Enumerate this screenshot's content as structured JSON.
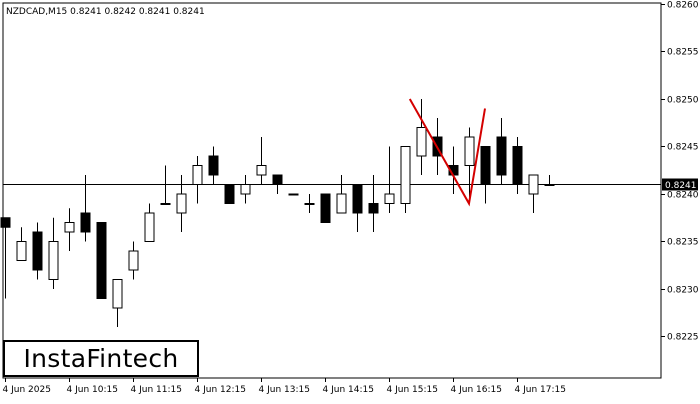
{
  "chart_data": {
    "type": "candlestick",
    "header": "NZDCAD,M15  0.8241 0.8242 0.8241 0.8241",
    "symbol": "NZDCAD",
    "timeframe": "M15",
    "last_ohlc": {
      "open": 0.8241,
      "high": 0.8242,
      "low": 0.8241,
      "close": 0.8241
    },
    "current_price": 0.8241,
    "current_price_label": "0.8241",
    "ylim": [
      0.822,
      0.826
    ],
    "y_ticks": [
      {
        "value": 0.826,
        "label": "0.8260"
      },
      {
        "value": 0.8255,
        "label": "0.8255"
      },
      {
        "value": 0.825,
        "label": "0.8250"
      },
      {
        "value": 0.8245,
        "label": "0.8245"
      },
      {
        "value": 0.824,
        "label": "0.8240"
      },
      {
        "value": 0.8235,
        "label": "0.8235"
      },
      {
        "value": 0.823,
        "label": "0.8230"
      },
      {
        "value": 0.8225,
        "label": "0.8225"
      }
    ],
    "x_ticks": [
      {
        "index": 0,
        "label": "4 Jun 2025"
      },
      {
        "index": 4,
        "label": "4 Jun 10:15"
      },
      {
        "index": 8,
        "label": "4 Jun 11:15"
      },
      {
        "index": 12,
        "label": "4 Jun 12:15"
      },
      {
        "index": 16,
        "label": "4 Jun 13:15"
      },
      {
        "index": 20,
        "label": "4 Jun 14:15"
      },
      {
        "index": 24,
        "label": "4 Jun 15:15"
      },
      {
        "index": 28,
        "label": "4 Jun 16:15"
      },
      {
        "index": 32,
        "label": "4 Jun 17:15"
      }
    ],
    "candles": [
      {
        "o": 0.82375,
        "h": 0.82375,
        "l": 0.8229,
        "c": 0.82365
      },
      {
        "o": 0.8233,
        "h": 0.82365,
        "l": 0.8233,
        "c": 0.8235
      },
      {
        "o": 0.8236,
        "h": 0.8237,
        "l": 0.8231,
        "c": 0.8232
      },
      {
        "o": 0.8231,
        "h": 0.82375,
        "l": 0.823,
        "c": 0.8235
      },
      {
        "o": 0.8236,
        "h": 0.82385,
        "l": 0.8234,
        "c": 0.8237
      },
      {
        "o": 0.8238,
        "h": 0.8242,
        "l": 0.8235,
        "c": 0.8236
      },
      {
        "o": 0.8237,
        "h": 0.8237,
        "l": 0.8229,
        "c": 0.8229
      },
      {
        "o": 0.8228,
        "h": 0.8231,
        "l": 0.8226,
        "c": 0.8231
      },
      {
        "o": 0.8232,
        "h": 0.8235,
        "l": 0.8231,
        "c": 0.8234
      },
      {
        "o": 0.8235,
        "h": 0.8239,
        "l": 0.8235,
        "c": 0.8238
      },
      {
        "o": 0.8239,
        "h": 0.8243,
        "l": 0.8239,
        "c": 0.8239
      },
      {
        "o": 0.8238,
        "h": 0.8242,
        "l": 0.8236,
        "c": 0.824
      },
      {
        "o": 0.8241,
        "h": 0.8244,
        "l": 0.8239,
        "c": 0.8243
      },
      {
        "o": 0.8244,
        "h": 0.8245,
        "l": 0.8241,
        "c": 0.8242
      },
      {
        "o": 0.8241,
        "h": 0.8241,
        "l": 0.8239,
        "c": 0.8239
      },
      {
        "o": 0.824,
        "h": 0.8242,
        "l": 0.8239,
        "c": 0.8241
      },
      {
        "o": 0.8242,
        "h": 0.8246,
        "l": 0.8241,
        "c": 0.8243
      },
      {
        "o": 0.8242,
        "h": 0.8242,
        "l": 0.824,
        "c": 0.8241
      },
      {
        "o": 0.824,
        "h": 0.824,
        "l": 0.824,
        "c": 0.824
      },
      {
        "o": 0.8239,
        "h": 0.824,
        "l": 0.8238,
        "c": 0.8239
      },
      {
        "o": 0.824,
        "h": 0.824,
        "l": 0.8237,
        "c": 0.8237
      },
      {
        "o": 0.8238,
        "h": 0.8242,
        "l": 0.8238,
        "c": 0.824
      },
      {
        "o": 0.8241,
        "h": 0.8241,
        "l": 0.8236,
        "c": 0.8238
      },
      {
        "o": 0.8239,
        "h": 0.8242,
        "l": 0.8236,
        "c": 0.8238
      },
      {
        "o": 0.8239,
        "h": 0.8245,
        "l": 0.8238,
        "c": 0.824
      },
      {
        "o": 0.8239,
        "h": 0.8245,
        "l": 0.8238,
        "c": 0.8245
      },
      {
        "o": 0.8244,
        "h": 0.825,
        "l": 0.8242,
        "c": 0.8247
      },
      {
        "o": 0.8246,
        "h": 0.8248,
        "l": 0.8242,
        "c": 0.8244
      },
      {
        "o": 0.8243,
        "h": 0.8245,
        "l": 0.824,
        "c": 0.8242
      },
      {
        "o": 0.8243,
        "h": 0.8247,
        "l": 0.8239,
        "c": 0.8246
      },
      {
        "o": 0.8245,
        "h": 0.8245,
        "l": 0.8239,
        "c": 0.8241
      },
      {
        "o": 0.8246,
        "h": 0.8248,
        "l": 0.8241,
        "c": 0.8242
      },
      {
        "o": 0.8245,
        "h": 0.8246,
        "l": 0.824,
        "c": 0.8241
      },
      {
        "o": 0.824,
        "h": 0.8242,
        "l": 0.8238,
        "c": 0.8242
      },
      {
        "o": 0.8241,
        "h": 0.8242,
        "l": 0.8241,
        "c": 0.8241
      }
    ],
    "pattern_line": {
      "color": "#d40000",
      "points": [
        {
          "index": 25.3,
          "value": 0.825
        },
        {
          "index": 29.0,
          "value": 0.8239
        },
        {
          "index": 30.0,
          "value": 0.8249
        }
      ]
    },
    "colors": {
      "bull_fill": "#ffffff",
      "bear_fill": "#000000",
      "wick": "#000000",
      "grid": "#000000",
      "price_line": "#000000",
      "label_bg": "#000000",
      "label_text": "#ffffff"
    }
  },
  "brand": {
    "logo_text": "InstaFintech"
  }
}
